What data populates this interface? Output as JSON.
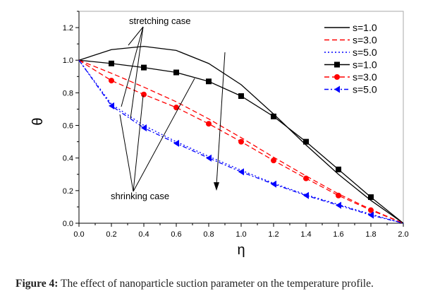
{
  "chart_data": {
    "type": "line",
    "xlabel": "η",
    "ylabel": "θ",
    "xlim": [
      0,
      2.0
    ],
    "ylim": [
      0,
      1.3
    ],
    "xticks": [
      "0.0",
      "0.2",
      "0.4",
      "0.6",
      "0.8",
      "1.0",
      "1.2",
      "1.4",
      "1.6",
      "1.8",
      "2.0"
    ],
    "yticks": [
      "0.0",
      "0.2",
      "0.4",
      "0.6",
      "0.8",
      "1.0",
      "1.2"
    ],
    "legend_position": "top-right",
    "x": [
      0,
      0.2,
      0.4,
      0.6,
      0.8,
      1.0,
      1.2,
      1.4,
      1.6,
      1.8,
      2.0
    ],
    "series": [
      {
        "name": "s=1.0",
        "case": "stretching",
        "color": "#000000",
        "style": "solid",
        "marker": "none",
        "values": [
          1,
          1.065,
          1.085,
          1.06,
          0.98,
          0.85,
          0.67,
          0.48,
          0.3,
          0.14,
          0
        ]
      },
      {
        "name": "s=3.0",
        "case": "stretching",
        "color": "#ff0000",
        "style": "dash",
        "marker": "none",
        "values": [
          1,
          0.92,
          0.835,
          0.745,
          0.64,
          0.525,
          0.405,
          0.29,
          0.18,
          0.085,
          0
        ]
      },
      {
        "name": "s=5.0",
        "case": "stretching",
        "color": "#0000ff",
        "style": "dot",
        "marker": "none",
        "values": [
          1,
          0.73,
          0.6,
          0.5,
          0.41,
          0.325,
          0.245,
          0.175,
          0.115,
          0.055,
          0
        ]
      },
      {
        "name": "s=1.0",
        "case": "shrinking",
        "color": "#000000",
        "style": "solid",
        "marker": "square",
        "values": [
          1,
          0.98,
          0.955,
          0.925,
          0.87,
          0.78,
          0.655,
          0.5,
          0.33,
          0.16,
          0
        ]
      },
      {
        "name": "s=3.0",
        "case": "shrinking",
        "color": "#ff0000",
        "style": "dash",
        "marker": "circle",
        "values": [
          1,
          0.875,
          0.79,
          0.71,
          0.61,
          0.5,
          0.385,
          0.275,
          0.17,
          0.08,
          0
        ]
      },
      {
        "name": "s=5.0",
        "case": "shrinking",
        "color": "#0000ff",
        "style": "dashdot",
        "marker": "triangle",
        "values": [
          1,
          0.72,
          0.585,
          0.49,
          0.4,
          0.315,
          0.24,
          0.17,
          0.11,
          0.05,
          0
        ]
      }
    ],
    "annotations": [
      "stretching case",
      "shrinking case"
    ]
  },
  "caption": {
    "label": "Figure 4:",
    "text": " The effect of nanoparticle suction parameter on the temperature profile."
  }
}
